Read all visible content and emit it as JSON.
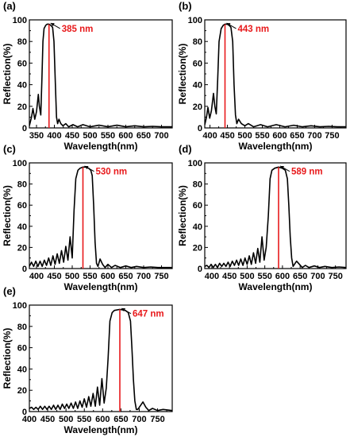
{
  "chart_data": [
    {
      "panel_label": "(a)",
      "type": "line",
      "xlabel": "Wavelength(nm)",
      "ylabel": "Reflection(%)",
      "xlim": [
        330,
        730
      ],
      "ylim": [
        0,
        100
      ],
      "xticks": [
        350,
        400,
        450,
        500,
        550,
        600,
        650,
        700
      ],
      "yticks": [
        0,
        20,
        40,
        60,
        80,
        100
      ],
      "peak": {
        "x": 385,
        "label": "385 nm"
      },
      "line_color": "#000000",
      "marker_color": "#e8191b",
      "series": [
        {
          "x": [
            330,
            336,
            340,
            345,
            350,
            355,
            358,
            362,
            365,
            368,
            371,
            376,
            380,
            385,
            390,
            395,
            399,
            403,
            406,
            409,
            413,
            418,
            424,
            432,
            440,
            452,
            465,
            480,
            500,
            525,
            550,
            575,
            600,
            625,
            650,
            675,
            700,
            730
          ],
          "y": [
            2,
            10,
            18,
            8,
            15,
            31,
            20,
            12,
            45,
            80,
            92,
            95,
            96,
            96,
            95,
            93,
            80,
            40,
            10,
            4,
            8,
            4,
            2,
            4,
            1,
            3,
            1,
            3,
            1,
            2.5,
            1,
            2.5,
            1,
            2,
            1,
            1.5,
            1,
            1
          ]
        }
      ]
    },
    {
      "panel_label": "(b)",
      "type": "line",
      "xlabel": "Wavelength(nm)",
      "ylabel": "Reflection(%)",
      "xlim": [
        385,
        790
      ],
      "ylim": [
        0,
        100
      ],
      "xticks": [
        400,
        450,
        500,
        550,
        600,
        650,
        700,
        750
      ],
      "yticks": [
        0,
        20,
        40,
        60,
        80,
        100
      ],
      "peak": {
        "x": 443,
        "label": "443 nm"
      },
      "line_color": "#000000",
      "marker_color": "#e8191b",
      "series": [
        {
          "x": [
            385,
            390,
            394,
            399,
            404,
            410,
            414,
            418,
            422,
            426,
            432,
            438,
            443,
            449,
            455,
            460,
            465,
            469,
            473,
            477,
            482,
            490,
            500,
            510,
            525,
            545,
            565,
            590,
            615,
            640,
            665,
            690,
            715,
            740,
            765,
            790
          ],
          "y": [
            3,
            10,
            19,
            9,
            16,
            32,
            20,
            13,
            45,
            80,
            92,
            95,
            96,
            96,
            95,
            93,
            80,
            40,
            12,
            4,
            8,
            4,
            2,
            4,
            1,
            3,
            1,
            3,
            1,
            2.5,
            1,
            2,
            1,
            1.5,
            1,
            1
          ]
        }
      ]
    },
    {
      "panel_label": "(c)",
      "type": "line",
      "xlabel": "Wavelength(nm)",
      "ylabel": "Reflection(%)",
      "xlim": [
        380,
        780
      ],
      "ylim": [
        0,
        100
      ],
      "xticks": [
        400,
        450,
        500,
        550,
        600,
        650,
        700,
        750
      ],
      "yticks": [
        0,
        20,
        40,
        60,
        80,
        100
      ],
      "peak": {
        "x": 530,
        "label": "530 nm"
      },
      "line_color": "#000000",
      "marker_color": "#e8191b",
      "series": [
        {
          "x": [
            380,
            386,
            392,
            398,
            404,
            410,
            416,
            422,
            428,
            434,
            440,
            446,
            452,
            458,
            464,
            470,
            476,
            482,
            488,
            494,
            500,
            505,
            510,
            516,
            522,
            530,
            538,
            546,
            552,
            556,
            560,
            564,
            568,
            572,
            578,
            585,
            592,
            600,
            610,
            620,
            635,
            650,
            665,
            680,
            700,
            720,
            740,
            760,
            780
          ],
          "y": [
            2,
            6,
            2,
            7,
            2,
            7,
            2,
            8,
            3,
            10,
            3,
            12,
            4,
            14,
            5,
            17,
            6,
            21,
            8,
            30,
            10,
            55,
            85,
            93,
            95,
            96,
            96,
            95,
            93,
            88,
            60,
            25,
            5,
            2,
            9,
            4,
            1,
            4,
            1,
            3,
            1,
            2.5,
            1,
            2,
            1,
            1.5,
            1,
            1,
            1
          ]
        }
      ]
    },
    {
      "panel_label": "(d)",
      "type": "line",
      "xlabel": "Wavelength(nm)",
      "ylabel": "Reflection(%)",
      "xlim": [
        380,
        780
      ],
      "ylim": [
        0,
        100
      ],
      "xticks": [
        400,
        450,
        500,
        550,
        600,
        650,
        700,
        750
      ],
      "yticks": [
        0,
        20,
        40,
        60,
        80,
        100
      ],
      "peak": {
        "x": 589,
        "label": "589 nm"
      },
      "line_color": "#000000",
      "marker_color": "#e8191b",
      "series": [
        {
          "x": [
            380,
            386,
            392,
            398,
            404,
            410,
            416,
            422,
            428,
            434,
            440,
            446,
            452,
            458,
            464,
            470,
            476,
            482,
            488,
            494,
            500,
            506,
            512,
            518,
            524,
            530,
            536,
            542,
            548,
            554,
            560,
            565,
            570,
            578,
            589,
            600,
            608,
            614,
            618,
            622,
            626,
            630,
            634,
            640,
            648,
            656,
            665,
            675,
            690,
            705,
            720,
            740,
            760,
            780
          ],
          "y": [
            2,
            3,
            1,
            4,
            1,
            4,
            1,
            5,
            2,
            5,
            2,
            6,
            2,
            7,
            3,
            8,
            3,
            9,
            3,
            10,
            4,
            12,
            4,
            15,
            5,
            19,
            6,
            30,
            8,
            20,
            50,
            85,
            93,
            95,
            96,
            95,
            93,
            85,
            60,
            30,
            10,
            2,
            4,
            7,
            4,
            1,
            3,
            1,
            2.5,
            1,
            2,
            1,
            1.5,
            1
          ]
        }
      ]
    },
    {
      "panel_label": "(e)",
      "type": "line",
      "xlabel": "Wavelength(nm)",
      "ylabel": "Reflection(%)",
      "xlim": [
        400,
        790
      ],
      "ylim": [
        0,
        100
      ],
      "xticks": [
        400,
        450,
        500,
        550,
        600,
        650,
        700,
        750
      ],
      "yticks": [
        0,
        20,
        40,
        60,
        80,
        100
      ],
      "peak": {
        "x": 647,
        "label": "647 nm"
      },
      "line_color": "#000000",
      "marker_color": "#e8191b",
      "series": [
        {
          "x": [
            400,
            406,
            412,
            418,
            424,
            430,
            436,
            442,
            448,
            454,
            460,
            466,
            472,
            478,
            484,
            490,
            496,
            502,
            508,
            514,
            520,
            526,
            532,
            538,
            544,
            550,
            556,
            562,
            568,
            574,
            580,
            586,
            592,
            598,
            604,
            610,
            615,
            620,
            626,
            632,
            647,
            662,
            670,
            676,
            680,
            684,
            688,
            692,
            696,
            702,
            710,
            718,
            726,
            736,
            750,
            765,
            790
          ],
          "y": [
            3,
            4,
            2,
            4,
            2,
            5,
            2,
            5,
            2,
            5,
            2,
            6,
            2,
            6,
            2,
            7,
            3,
            7,
            3,
            8,
            3,
            9,
            3,
            10,
            4,
            12,
            4,
            14,
            5,
            17,
            5,
            23,
            6,
            31,
            8,
            22,
            50,
            85,
            93,
            95,
            96,
            95,
            93,
            85,
            60,
            30,
            10,
            2,
            2,
            5,
            9,
            4,
            1,
            3,
            1,
            2,
            1
          ]
        }
      ]
    }
  ]
}
